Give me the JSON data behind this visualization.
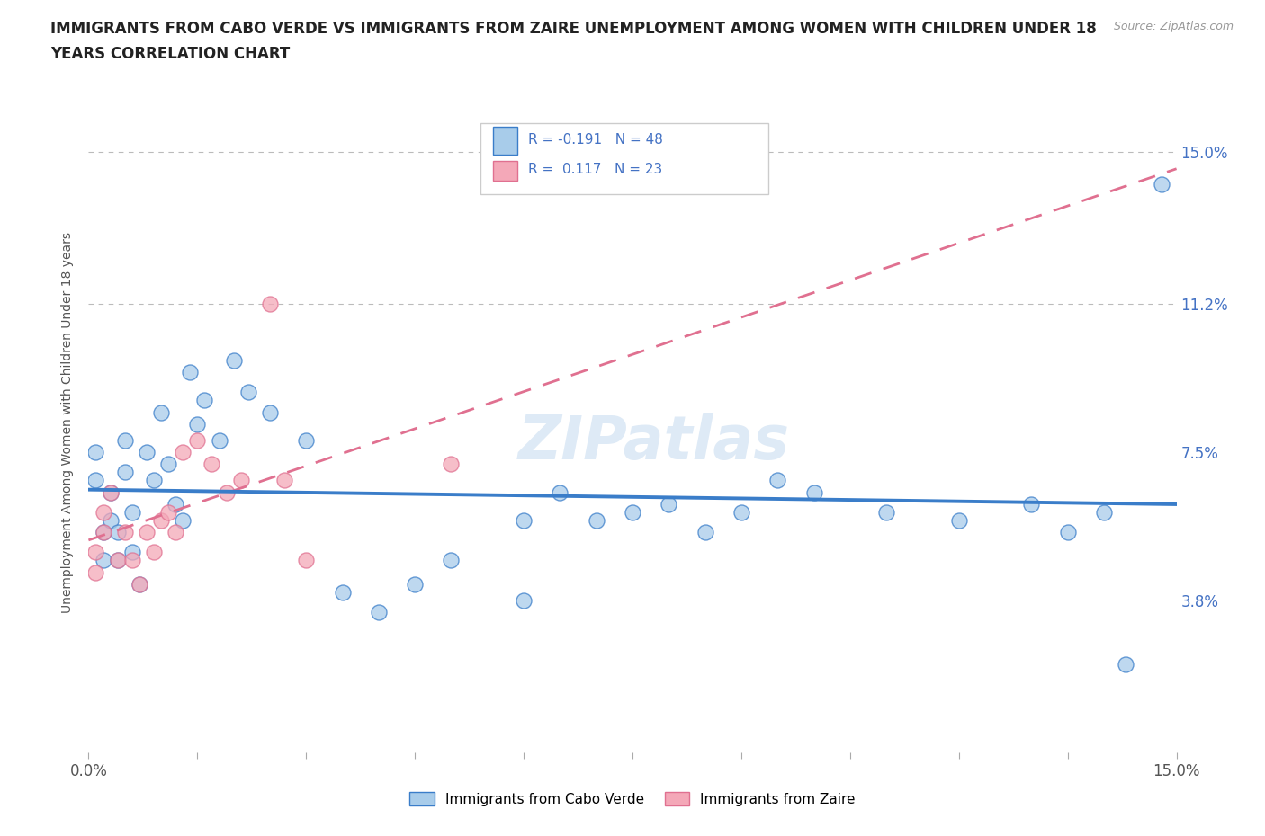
{
  "title_line1": "IMMIGRANTS FROM CABO VERDE VS IMMIGRANTS FROM ZAIRE UNEMPLOYMENT AMONG WOMEN WITH CHILDREN UNDER 18",
  "title_line2": "YEARS CORRELATION CHART",
  "source_text": "Source: ZipAtlas.com",
  "ylabel": "Unemployment Among Women with Children Under 18 years",
  "xlim": [
    0.0,
    0.15
  ],
  "ylim": [
    0.0,
    0.165
  ],
  "yticks": [
    0.038,
    0.075,
    0.112,
    0.15
  ],
  "ytick_labels": [
    "3.8%",
    "7.5%",
    "11.2%",
    "15.0%"
  ],
  "hlines": [
    0.112,
    0.15
  ],
  "cabo_color": "#A8CCEA",
  "zaire_color": "#F4A8B8",
  "cabo_line_color": "#3A7DC9",
  "zaire_line_color": "#E07090",
  "cabo_R": -0.191,
  "cabo_N": 48,
  "zaire_R": 0.117,
  "zaire_N": 23,
  "legend_cabo": "Immigrants from Cabo Verde",
  "legend_zaire": "Immigrants from Zaire",
  "background_color": "#ffffff",
  "title_color": "#222222",
  "cabo_verde_x": [
    0.001,
    0.001,
    0.002,
    0.002,
    0.003,
    0.003,
    0.004,
    0.004,
    0.005,
    0.005,
    0.006,
    0.006,
    0.007,
    0.008,
    0.009,
    0.01,
    0.011,
    0.012,
    0.013,
    0.014,
    0.015,
    0.016,
    0.018,
    0.02,
    0.022,
    0.025,
    0.03,
    0.035,
    0.04,
    0.045,
    0.05,
    0.06,
    0.06,
    0.065,
    0.07,
    0.075,
    0.08,
    0.085,
    0.09,
    0.095,
    0.1,
    0.11,
    0.12,
    0.13,
    0.135,
    0.14,
    0.143,
    0.148
  ],
  "cabo_verde_y": [
    0.075,
    0.068,
    0.048,
    0.055,
    0.065,
    0.058,
    0.055,
    0.048,
    0.07,
    0.078,
    0.06,
    0.05,
    0.042,
    0.075,
    0.068,
    0.085,
    0.072,
    0.062,
    0.058,
    0.095,
    0.082,
    0.088,
    0.078,
    0.098,
    0.09,
    0.085,
    0.078,
    0.04,
    0.035,
    0.042,
    0.048,
    0.038,
    0.058,
    0.065,
    0.058,
    0.06,
    0.062,
    0.055,
    0.06,
    0.068,
    0.065,
    0.06,
    0.058,
    0.062,
    0.055,
    0.06,
    0.022,
    0.142
  ],
  "zaire_x": [
    0.001,
    0.001,
    0.002,
    0.002,
    0.003,
    0.004,
    0.005,
    0.006,
    0.007,
    0.008,
    0.009,
    0.01,
    0.011,
    0.012,
    0.013,
    0.015,
    0.017,
    0.019,
    0.021,
    0.025,
    0.027,
    0.03,
    0.05
  ],
  "zaire_y": [
    0.05,
    0.045,
    0.055,
    0.06,
    0.065,
    0.048,
    0.055,
    0.048,
    0.042,
    0.055,
    0.05,
    0.058,
    0.06,
    0.055,
    0.075,
    0.078,
    0.072,
    0.065,
    0.068,
    0.112,
    0.068,
    0.048,
    0.072
  ]
}
